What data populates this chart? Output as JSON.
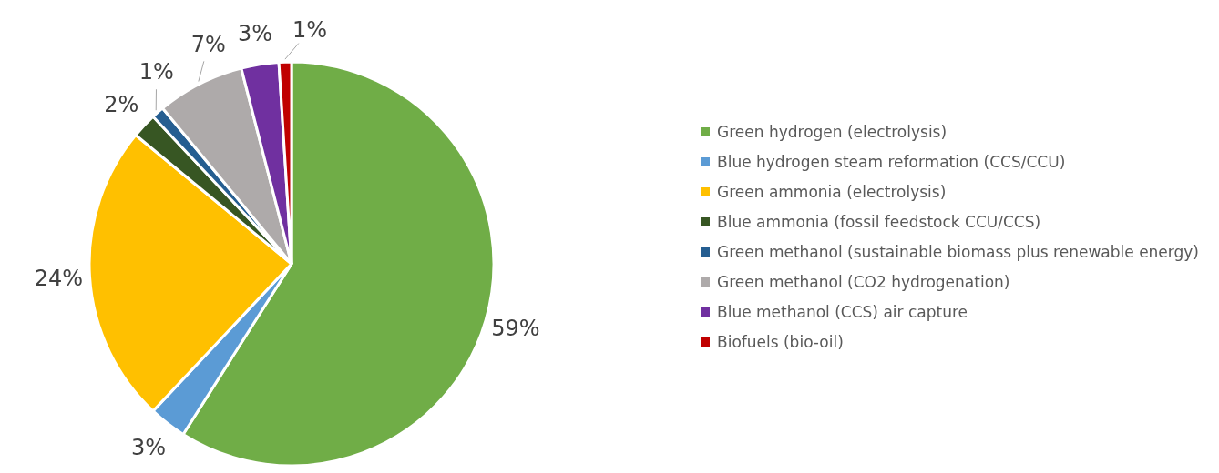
{
  "chart_data": {
    "type": "pie",
    "categories": [
      "Green hydrogen (electrolysis)",
      "Blue hydrogen steam reformation (CCS/CCU)",
      "Green ammonia (electrolysis)",
      "Blue ammonia (fossil feedstock CCU/CCS)",
      "Green methanol (sustainable biomass plus renewable energy)",
      "Green methanol (CO2 hydrogenation)",
      "Blue methanol (CCS) air capture",
      "Biofuels (bio-oil)"
    ],
    "values": [
      59,
      3,
      24,
      2,
      1,
      7,
      3,
      1
    ],
    "colors": [
      "#70ad47",
      "#5b9bd5",
      "#ffc000",
      "#375623",
      "#255e91",
      "#aeaaaa",
      "#7030a0",
      "#c00000"
    ],
    "value_labels": [
      "59%",
      "3%",
      "24%",
      "2%",
      "1%",
      "7%",
      "3%",
      "1%"
    ],
    "legend": "right"
  }
}
